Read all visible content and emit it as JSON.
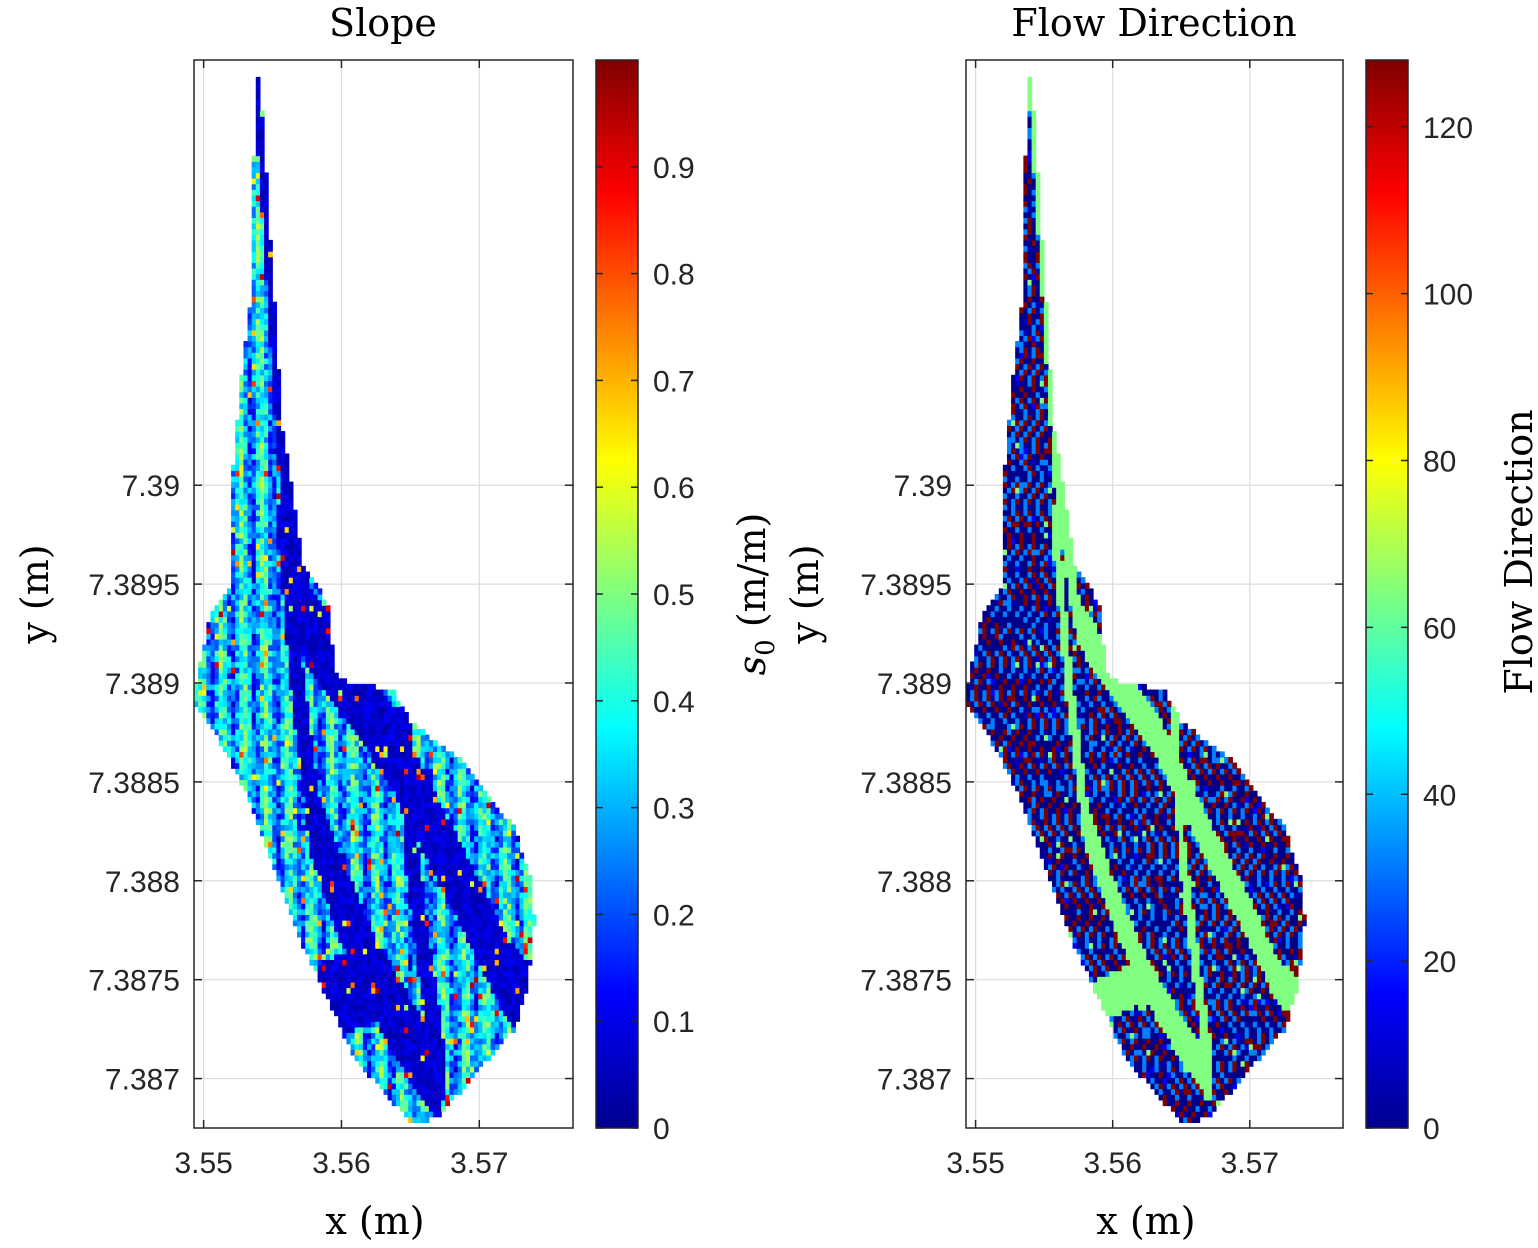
{
  "colormap": "jet",
  "chart_data": [
    {
      "type": "heatmap",
      "title": "Slope",
      "xlabel": "x (m)",
      "ylabel": "y (m)",
      "xlim": [
        3.5493,
        3.5768
      ],
      "ylim": [
        7.38675,
        7.39215
      ],
      "xticks": [
        3.55,
        3.56,
        3.57
      ],
      "xtick_labels": [
        "3.55",
        "3.56",
        "3.57"
      ],
      "yticks": [
        7.387,
        7.3875,
        7.388,
        7.3885,
        7.389,
        7.3895,
        7.39
      ],
      "ytick_labels": [
        "7.387",
        "7.3875",
        "7.388",
        "7.3885",
        "7.389",
        "7.3895",
        "7.39"
      ],
      "grid": true,
      "colorbar": {
        "label_base": "s",
        "label_sub": "0",
        "label_unit": " (m/m)",
        "range": [
          0,
          1
        ],
        "ticks": [
          0,
          0.1,
          0.2,
          0.3,
          0.4,
          0.5,
          0.6,
          0.7,
          0.8,
          0.9
        ],
        "tick_labels": [
          "0",
          "0.1",
          "0.2",
          "0.3",
          "0.4",
          "0.5",
          "0.6",
          "0.7",
          "0.8",
          "0.9"
        ]
      },
      "typical_value_range": [
        0,
        0.95
      ],
      "field": "slope"
    },
    {
      "type": "heatmap",
      "title": "Flow Direction",
      "xlabel": "x (m)",
      "ylabel": "y (m)",
      "xlim": [
        3.5493,
        3.5768
      ],
      "ylim": [
        7.38675,
        7.39215
      ],
      "xticks": [
        3.55,
        3.56,
        3.57
      ],
      "xtick_labels": [
        "3.55",
        "3.56",
        "3.57"
      ],
      "yticks": [
        7.387,
        7.3875,
        7.388,
        7.3885,
        7.389,
        7.3895,
        7.39
      ],
      "ytick_labels": [
        "7.387",
        "7.3875",
        "7.388",
        "7.3885",
        "7.389",
        "7.3895",
        "7.39"
      ],
      "grid": true,
      "colorbar": {
        "label": "Flow Direction",
        "range": [
          0,
          128
        ],
        "ticks": [
          0,
          20,
          40,
          60,
          80,
          100,
          120
        ],
        "tick_labels": [
          "0",
          "20",
          "40",
          "60",
          "80",
          "100",
          "120"
        ]
      },
      "observed_values": [
        1,
        2,
        4,
        8,
        16,
        32,
        64,
        128
      ],
      "field": "flow_direction"
    }
  ],
  "catchment_outline": {
    "description_units": "x (m), y (m)",
    "points": [
      [
        3.554,
        7.39215
      ],
      [
        3.5557,
        7.3903
      ],
      [
        3.5572,
        7.3896
      ],
      [
        3.559,
        7.3894
      ],
      [
        3.5595,
        7.38905
      ],
      [
        3.5605,
        7.389
      ],
      [
        3.5637,
        7.38897
      ],
      [
        3.565,
        7.3888
      ],
      [
        3.5685,
        7.38862
      ],
      [
        3.5725,
        7.38827
      ],
      [
        3.5738,
        7.388
      ],
      [
        3.574,
        7.3878
      ],
      [
        3.5735,
        7.38745
      ],
      [
        3.5725,
        7.38725
      ],
      [
        3.57,
        7.38705
      ],
      [
        3.567,
        7.3868
      ],
      [
        3.565,
        7.38678
      ],
      [
        3.561,
        7.3871
      ],
      [
        3.559,
        7.3874
      ],
      [
        3.557,
        7.3877
      ],
      [
        3.5555,
        7.388
      ],
      [
        3.553,
        7.38845
      ],
      [
        3.551,
        7.38873
      ],
      [
        3.5494,
        7.38888
      ],
      [
        3.5494,
        7.38898
      ],
      [
        3.5505,
        7.38935
      ],
      [
        3.552,
        7.3895
      ],
      [
        3.552,
        7.39
      ],
      [
        3.5528,
        7.3906
      ],
      [
        3.5535,
        7.391
      ],
      [
        3.5535,
        7.3915
      ]
    ]
  },
  "channels": [
    [
      [
        3.554,
        7.3921
      ],
      [
        3.556,
        7.39
      ],
      [
        3.5575,
        7.3893
      ],
      [
        3.5605,
        7.389
      ],
      [
        3.5635,
        7.3887
      ],
      [
        3.567,
        7.3882
      ],
      [
        3.57,
        7.3878
      ],
      [
        3.572,
        7.3875
      ],
      [
        3.5735,
        7.3874
      ]
    ],
    [
      [
        3.5558,
        7.3898
      ],
      [
        3.5568,
        7.389
      ],
      [
        3.558,
        7.3883
      ],
      [
        3.56,
        7.3879
      ],
      [
        3.5625,
        7.3875
      ],
      [
        3.565,
        7.3872
      ],
      [
        3.567,
        7.387
      ]
    ],
    [
      [
        3.5555,
        7.3872
      ],
      [
        3.559,
        7.3874
      ],
      [
        3.5625,
        7.3875
      ]
    ],
    [
      [
        3.5645,
        7.3888
      ],
      [
        3.565,
        7.3882
      ],
      [
        3.566,
        7.3876
      ],
      [
        3.567,
        7.3871
      ]
    ]
  ]
}
